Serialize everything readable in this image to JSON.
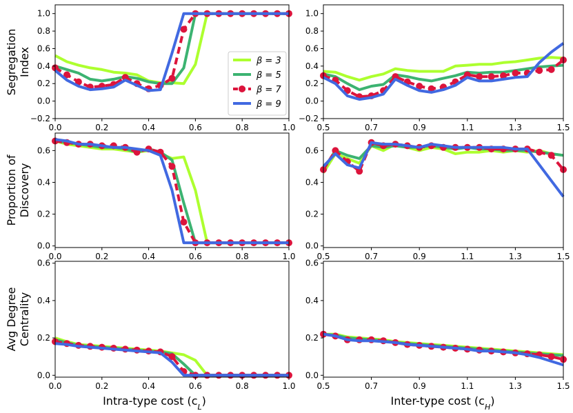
{
  "colors": {
    "beta3": "#adff2f",
    "beta5": "#3cb371",
    "beta7": "#dc143c",
    "beta9": "#4169e1"
  },
  "legend": [
    {
      "label": "β = 3",
      "color": "#adff2f",
      "style": "solid"
    },
    {
      "label": "β = 5",
      "color": "#3cb371",
      "style": "solid"
    },
    {
      "label": "β = 7",
      "color": "#dc143c",
      "style": "dashed-markers"
    },
    {
      "label": "β = 9",
      "color": "#4169e1",
      "style": "solid"
    }
  ],
  "row_labels": [
    [
      "Segregation",
      "Index"
    ],
    [
      "Proportion of",
      "Discovery"
    ],
    [
      "Avg Degree",
      "Centrality"
    ]
  ],
  "xlabels": {
    "left": "Intra-type cost (c",
    "left_sub": "L",
    "right": "Inter-type cost (c",
    "right_sub": "H"
  },
  "chart_data": [
    {
      "type": "line",
      "panel": "segregation-left",
      "ylabel": "Segregation Index",
      "xlabel": "",
      "xlim": [
        0,
        1
      ],
      "ylim": [
        -0.2,
        1.1
      ],
      "xticks": [
        "0.0",
        "0.2",
        "0.4",
        "0.6",
        "0.8",
        "1.0"
      ],
      "yticks": [
        "−0.2",
        "0.0",
        "0.2",
        "0.4",
        "0.6",
        "0.8",
        "1.0"
      ],
      "x": [
        0,
        0.05,
        0.1,
        0.15,
        0.2,
        0.25,
        0.3,
        0.35,
        0.4,
        0.45,
        0.5,
        0.55,
        0.6,
        0.65,
        0.7,
        0.75,
        0.8,
        0.85,
        0.9,
        0.95,
        1.0
      ],
      "series": [
        {
          "name": "β = 3",
          "values": [
            0.52,
            0.45,
            0.41,
            0.38,
            0.36,
            0.33,
            0.32,
            0.3,
            0.23,
            0.21,
            0.21,
            0.2,
            0.42,
            1,
            1,
            1,
            1,
            1,
            1,
            1,
            1
          ]
        },
        {
          "name": "β = 5",
          "values": [
            0.4,
            0.36,
            0.32,
            0.25,
            0.23,
            0.25,
            0.28,
            0.26,
            0.22,
            0.2,
            0.2,
            0.38,
            1,
            1,
            1,
            1,
            1,
            1,
            1,
            1,
            1
          ]
        },
        {
          "name": "β = 7",
          "values": [
            0.38,
            0.3,
            0.22,
            0.16,
            0.17,
            0.19,
            0.27,
            0.2,
            0.14,
            0.18,
            0.26,
            0.82,
            1,
            1,
            1,
            1,
            1,
            1,
            1,
            1,
            1
          ]
        },
        {
          "name": "β = 9",
          "values": [
            0.35,
            0.24,
            0.17,
            0.13,
            0.14,
            0.16,
            0.24,
            0.18,
            0.12,
            0.13,
            0.55,
            1,
            1,
            1,
            1,
            1,
            1,
            1,
            1,
            1,
            1
          ]
        }
      ]
    },
    {
      "type": "line",
      "panel": "segregation-right",
      "xlabel": "",
      "xlim": [
        0.5,
        1.5
      ],
      "ylim": [
        -0.2,
        1.1
      ],
      "xticks": [
        "0.5",
        "0.7",
        "0.9",
        "1.1",
        "1.3",
        "1.5"
      ],
      "yticks": [
        "−0.2",
        "0.0",
        "0.2",
        "0.4",
        "0.6",
        "0.8",
        "1.0"
      ],
      "x": [
        0.5,
        0.55,
        0.6,
        0.65,
        0.7,
        0.75,
        0.8,
        0.85,
        0.9,
        0.95,
        1.0,
        1.05,
        1.1,
        1.15,
        1.2,
        1.25,
        1.3,
        1.35,
        1.4,
        1.45,
        1.5
      ],
      "series": [
        {
          "name": "β = 3",
          "values": [
            0.34,
            0.33,
            0.28,
            0.24,
            0.28,
            0.31,
            0.37,
            0.35,
            0.34,
            0.34,
            0.34,
            0.4,
            0.41,
            0.42,
            0.42,
            0.44,
            0.45,
            0.47,
            0.49,
            0.5,
            0.49
          ]
        },
        {
          "name": "β = 5",
          "values": [
            0.31,
            0.28,
            0.2,
            0.13,
            0.17,
            0.19,
            0.3,
            0.28,
            0.25,
            0.23,
            0.26,
            0.29,
            0.33,
            0.32,
            0.33,
            0.33,
            0.35,
            0.37,
            0.39,
            0.4,
            0.41
          ]
        },
        {
          "name": "β = 7",
          "values": [
            0.29,
            0.24,
            0.12,
            0.05,
            0.06,
            0.12,
            0.28,
            0.22,
            0.17,
            0.14,
            0.16,
            0.22,
            0.3,
            0.28,
            0.28,
            0.29,
            0.32,
            0.32,
            0.35,
            0.36,
            0.47
          ]
        },
        {
          "name": "β = 9",
          "values": [
            0.27,
            0.2,
            0.06,
            0.02,
            0.04,
            0.08,
            0.25,
            0.18,
            0.12,
            0.1,
            0.13,
            0.18,
            0.27,
            0.23,
            0.23,
            0.25,
            0.27,
            0.28,
            0.44,
            0.56,
            0.66
          ]
        }
      ]
    },
    {
      "type": "line",
      "panel": "discovery-left",
      "ylabel": "Proportion of Discovery",
      "xlabel": "",
      "xlim": [
        0,
        1
      ],
      "ylim": [
        -0.01,
        0.71
      ],
      "xticks": [
        "0.0",
        "0.2",
        "0.4",
        "0.6",
        "0.8",
        "1.0"
      ],
      "yticks": [
        "0.0",
        "0.2",
        "0.4",
        "0.6"
      ],
      "x": [
        0,
        0.05,
        0.1,
        0.15,
        0.2,
        0.25,
        0.3,
        0.35,
        0.4,
        0.45,
        0.5,
        0.55,
        0.6,
        0.65,
        0.7,
        0.75,
        0.8,
        0.85,
        0.9,
        0.95,
        1.0
      ],
      "series": [
        {
          "name": "β = 3",
          "values": [
            0.66,
            0.64,
            0.63,
            0.62,
            0.61,
            0.61,
            0.6,
            0.59,
            0.6,
            0.58,
            0.55,
            0.56,
            0.35,
            0.02,
            0.02,
            0.02,
            0.02,
            0.02,
            0.02,
            0.02,
            0.02
          ]
        },
        {
          "name": "β = 5",
          "values": [
            0.66,
            0.65,
            0.64,
            0.63,
            0.62,
            0.62,
            0.61,
            0.59,
            0.61,
            0.59,
            0.54,
            0.27,
            0.02,
            0.02,
            0.02,
            0.02,
            0.02,
            0.02,
            0.02,
            0.02,
            0.02
          ]
        },
        {
          "name": "β = 7",
          "values": [
            0.66,
            0.65,
            0.64,
            0.64,
            0.63,
            0.63,
            0.62,
            0.59,
            0.61,
            0.59,
            0.5,
            0.15,
            0.02,
            0.02,
            0.02,
            0.02,
            0.02,
            0.02,
            0.02,
            0.02,
            0.02
          ]
        },
        {
          "name": "β = 9",
          "values": [
            0.67,
            0.66,
            0.64,
            0.64,
            0.63,
            0.62,
            0.62,
            0.61,
            0.6,
            0.57,
            0.35,
            0.02,
            0.02,
            0.02,
            0.02,
            0.02,
            0.02,
            0.02,
            0.02,
            0.02,
            0.02
          ]
        }
      ]
    },
    {
      "type": "line",
      "panel": "discovery-right",
      "xlabel": "",
      "xlim": [
        0.5,
        1.5
      ],
      "ylim": [
        -0.01,
        0.71
      ],
      "xticks": [
        "0.5",
        "0.7",
        "0.9",
        "1.1",
        "1.3",
        "1.5"
      ],
      "yticks": [
        "0.0",
        "0.2",
        "0.4",
        "0.6"
      ],
      "x": [
        0.5,
        0.55,
        0.6,
        0.65,
        0.7,
        0.75,
        0.8,
        0.85,
        0.9,
        0.95,
        1.0,
        1.05,
        1.1,
        1.15,
        1.2,
        1.25,
        1.3,
        1.35,
        1.4,
        1.45,
        1.5
      ],
      "series": [
        {
          "name": "β = 3",
          "values": [
            0.46,
            0.58,
            0.55,
            0.52,
            0.63,
            0.6,
            0.64,
            0.62,
            0.6,
            0.62,
            0.61,
            0.58,
            0.59,
            0.59,
            0.6,
            0.59,
            0.6,
            0.59,
            0.6,
            0.58,
            0.57
          ]
        },
        {
          "name": "β = 5",
          "values": [
            0.48,
            0.6,
            0.57,
            0.55,
            0.63,
            0.62,
            0.63,
            0.62,
            0.62,
            0.63,
            0.62,
            0.61,
            0.62,
            0.61,
            0.61,
            0.6,
            0.6,
            0.6,
            0.59,
            0.58,
            0.57
          ]
        },
        {
          "name": "β = 7",
          "values": [
            0.48,
            0.6,
            0.53,
            0.47,
            0.65,
            0.63,
            0.64,
            0.63,
            0.62,
            0.63,
            0.62,
            0.62,
            0.62,
            0.62,
            0.61,
            0.61,
            0.61,
            0.61,
            0.59,
            0.57,
            0.48
          ]
        },
        {
          "name": "β = 9",
          "values": [
            0.5,
            0.58,
            0.51,
            0.49,
            0.65,
            0.64,
            0.64,
            0.63,
            0.62,
            0.64,
            0.63,
            0.62,
            0.62,
            0.62,
            0.62,
            0.62,
            0.61,
            0.61,
            0.51,
            0.41,
            0.31
          ]
        }
      ]
    },
    {
      "type": "line",
      "panel": "centrality-left",
      "ylabel": "Avg Degree Centrality",
      "xlabel": "Intra-type cost (cL)",
      "xlim": [
        0,
        1
      ],
      "ylim": [
        -0.01,
        0.61
      ],
      "xticks": [
        "0.0",
        "0.2",
        "0.4",
        "0.6",
        "0.8",
        "1.0"
      ],
      "yticks": [
        "0.0",
        "0.2",
        "0.4",
        "0.6"
      ],
      "x": [
        0,
        0.05,
        0.1,
        0.15,
        0.2,
        0.25,
        0.3,
        0.35,
        0.4,
        0.45,
        0.5,
        0.55,
        0.6,
        0.65,
        0.7,
        0.75,
        0.8,
        0.85,
        0.9,
        0.95,
        1.0
      ],
      "series": [
        {
          "name": "β = 3",
          "values": [
            0.2,
            0.18,
            0.165,
            0.16,
            0.155,
            0.15,
            0.145,
            0.14,
            0.135,
            0.13,
            0.12,
            0.11,
            0.08,
            0.0,
            0.0,
            0.0,
            0.0,
            0.0,
            0.0,
            0.0,
            0.0
          ]
        },
        {
          "name": "β = 5",
          "values": [
            0.19,
            0.175,
            0.16,
            0.155,
            0.15,
            0.145,
            0.14,
            0.135,
            0.13,
            0.125,
            0.115,
            0.06,
            0.0,
            0.0,
            0.0,
            0.0,
            0.0,
            0.0,
            0.0,
            0.0,
            0.0
          ]
        },
        {
          "name": "β = 7",
          "values": [
            0.18,
            0.17,
            0.16,
            0.155,
            0.15,
            0.145,
            0.14,
            0.135,
            0.13,
            0.125,
            0.1,
            0.02,
            0.0,
            0.0,
            0.0,
            0.0,
            0.0,
            0.0,
            0.0,
            0.0,
            0.0
          ]
        },
        {
          "name": "β = 9",
          "values": [
            0.17,
            0.165,
            0.155,
            0.15,
            0.145,
            0.14,
            0.135,
            0.13,
            0.125,
            0.12,
            0.07,
            0.0,
            0.0,
            0.0,
            0.0,
            0.0,
            0.0,
            0.0,
            0.0,
            0.0,
            0.0
          ]
        }
      ]
    },
    {
      "type": "line",
      "panel": "centrality-right",
      "xlabel": "Inter-type cost (cH)",
      "xlim": [
        0.5,
        1.5
      ],
      "ylim": [
        -0.01,
        0.61
      ],
      "xticks": [
        "0.5",
        "0.7",
        "0.9",
        "1.1",
        "1.3",
        "1.5"
      ],
      "yticks": [
        "0.0",
        "0.2",
        "0.4",
        "0.6"
      ],
      "x": [
        0.5,
        0.55,
        0.6,
        0.65,
        0.7,
        0.75,
        0.8,
        0.85,
        0.9,
        0.95,
        1.0,
        1.05,
        1.1,
        1.15,
        1.2,
        1.25,
        1.3,
        1.35,
        1.4,
        1.45,
        1.5
      ],
      "series": [
        {
          "name": "β = 3",
          "values": [
            0.22,
            0.22,
            0.205,
            0.2,
            0.195,
            0.19,
            0.18,
            0.175,
            0.17,
            0.165,
            0.16,
            0.155,
            0.15,
            0.145,
            0.14,
            0.135,
            0.13,
            0.125,
            0.12,
            0.115,
            0.11
          ]
        },
        {
          "name": "β = 5",
          "values": [
            0.22,
            0.215,
            0.2,
            0.195,
            0.19,
            0.185,
            0.175,
            0.17,
            0.165,
            0.16,
            0.155,
            0.15,
            0.145,
            0.14,
            0.135,
            0.13,
            0.125,
            0.12,
            0.115,
            0.11,
            0.105
          ]
        },
        {
          "name": "β = 7",
          "values": [
            0.22,
            0.21,
            0.19,
            0.19,
            0.19,
            0.185,
            0.175,
            0.165,
            0.16,
            0.155,
            0.15,
            0.145,
            0.14,
            0.135,
            0.13,
            0.125,
            0.12,
            0.115,
            0.11,
            0.1,
            0.085
          ]
        },
        {
          "name": "β = 9",
          "values": [
            0.22,
            0.21,
            0.19,
            0.185,
            0.185,
            0.18,
            0.175,
            0.165,
            0.16,
            0.155,
            0.15,
            0.145,
            0.14,
            0.13,
            0.13,
            0.125,
            0.12,
            0.11,
            0.095,
            0.075,
            0.055
          ]
        }
      ]
    }
  ]
}
